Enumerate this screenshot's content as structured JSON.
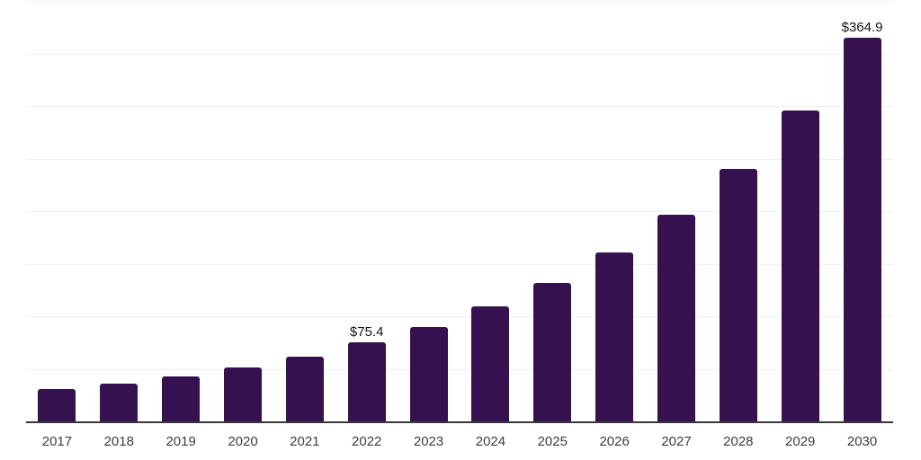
{
  "chart_data": {
    "type": "bar",
    "title": "",
    "xlabel": "",
    "ylabel": "",
    "categories": [
      "2017",
      "2018",
      "2019",
      "2020",
      "2021",
      "2022",
      "2023",
      "2024",
      "2025",
      "2026",
      "2027",
      "2028",
      "2029",
      "2030"
    ],
    "values": [
      31.0,
      35.7,
      42.7,
      51.7,
      61.7,
      75.4,
      89.5,
      109.5,
      131.9,
      160.3,
      196.6,
      240.1,
      295.6,
      364.9
    ],
    "data_labels": [
      "",
      "",
      "",
      "",
      "",
      "$75.4",
      "",
      "",
      "",
      "",
      "",
      "",
      "",
      "$364.9"
    ],
    "ylim": [
      0,
      400
    ],
    "gridline_interval": 50,
    "grid": true,
    "legend": "none",
    "colors": {
      "bar": "#36114F",
      "axis_line": "#383838",
      "gridline": "#f0f0f0",
      "tick_label": "#3d3d3d",
      "data_label": "#141414",
      "background": "#ffffff"
    }
  }
}
